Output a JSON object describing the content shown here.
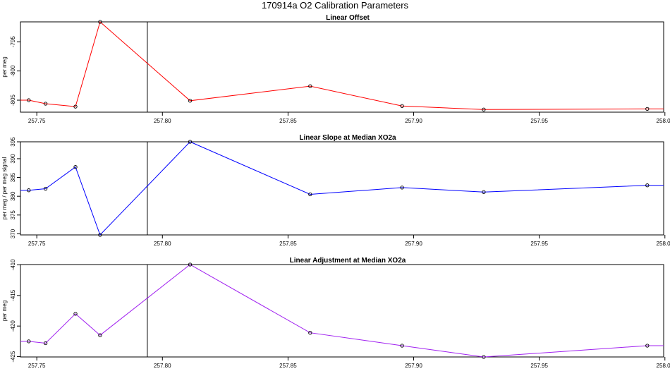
{
  "figure": {
    "title": "170914a   O2 Calibration Parameters"
  },
  "chart_data": [
    {
      "type": "line",
      "title": "Linear Offset",
      "ylabel": "per meg",
      "color": "#ff0000",
      "xlim": [
        257.7435,
        257.9995
      ],
      "ylim": [
        -807.05,
        -791.6
      ],
      "xticks": [
        257.75,
        257.8,
        257.85,
        257.9,
        257.95,
        258.0
      ],
      "xtick_labels": [
        "257.75",
        "257.80",
        "257.85",
        "257.90",
        "257.95",
        "258.00"
      ],
      "yticks": [
        -795,
        -800,
        -805
      ],
      "ytick_labels": [
        "-795",
        "-800",
        "-805"
      ],
      "vline_x": 257.794,
      "x": [
        257.7435,
        257.7468,
        257.7535,
        257.7654,
        257.7752,
        257.811,
        257.8588,
        257.8954,
        257.9279,
        257.993,
        257.9995
      ],
      "y": [
        -805.0,
        -805.0,
        -805.6,
        -806.1,
        -791.6,
        -805.1,
        -802.6,
        -806.0,
        -806.6,
        -806.5,
        -806.5
      ],
      "markers": [
        false,
        true,
        true,
        true,
        true,
        true,
        true,
        true,
        true,
        true,
        false
      ]
    },
    {
      "type": "line",
      "title": "Linear Slope at Median XO2a",
      "ylabel": "per meg / per meg signal",
      "color": "#0000ff",
      "xlim": [
        257.7435,
        257.9995
      ],
      "ylim": [
        369.7,
        394.5
      ],
      "xticks": [
        257.75,
        257.8,
        257.85,
        257.9,
        257.95,
        258.0
      ],
      "xtick_labels": [
        "257.75",
        "257.80",
        "257.85",
        "257.90",
        "257.95",
        "258.00"
      ],
      "yticks": [
        395,
        390,
        385,
        380,
        375,
        370
      ],
      "ytick_labels": [
        "395",
        "390",
        "385",
        "380",
        "375",
        "370"
      ],
      "vline_x": 257.794,
      "x": [
        257.7435,
        257.7468,
        257.7535,
        257.7654,
        257.7752,
        257.811,
        257.8588,
        257.8954,
        257.9279,
        257.993,
        257.9995
      ],
      "y": [
        381.6,
        381.6,
        382.0,
        387.8,
        369.7,
        394.5,
        380.5,
        382.3,
        381.1,
        382.9,
        382.9
      ],
      "markers": [
        false,
        true,
        true,
        true,
        true,
        true,
        true,
        true,
        true,
        true,
        false
      ]
    },
    {
      "type": "line",
      "title": "Linear Adjustment at Median XO2a",
      "ylabel": "per meg",
      "color": "#a020f0",
      "xlim": [
        257.7435,
        257.9995
      ],
      "ylim": [
        -425.05,
        -409.95
      ],
      "xticks": [
        257.75,
        257.8,
        257.85,
        257.9,
        257.95,
        258.0
      ],
      "xtick_labels": [
        "257.75",
        "257.80",
        "257.85",
        "257.90",
        "257.95",
        "258.00"
      ],
      "yticks": [
        -410,
        -415,
        -420,
        -425
      ],
      "ytick_labels": [
        "-410",
        "-415",
        "-420",
        "-425"
      ],
      "vline_x": 257.794,
      "x": [
        257.7435,
        257.7468,
        257.7535,
        257.7654,
        257.7752,
        257.811,
        257.8588,
        257.8954,
        257.9279,
        257.993,
        257.9995
      ],
      "y": [
        -422.5,
        -422.5,
        -422.8,
        -418.0,
        -421.5,
        -409.95,
        -421.1,
        -423.2,
        -425.05,
        -423.2,
        -423.2
      ],
      "markers": [
        false,
        true,
        true,
        true,
        true,
        true,
        true,
        true,
        true,
        true,
        false
      ]
    }
  ]
}
